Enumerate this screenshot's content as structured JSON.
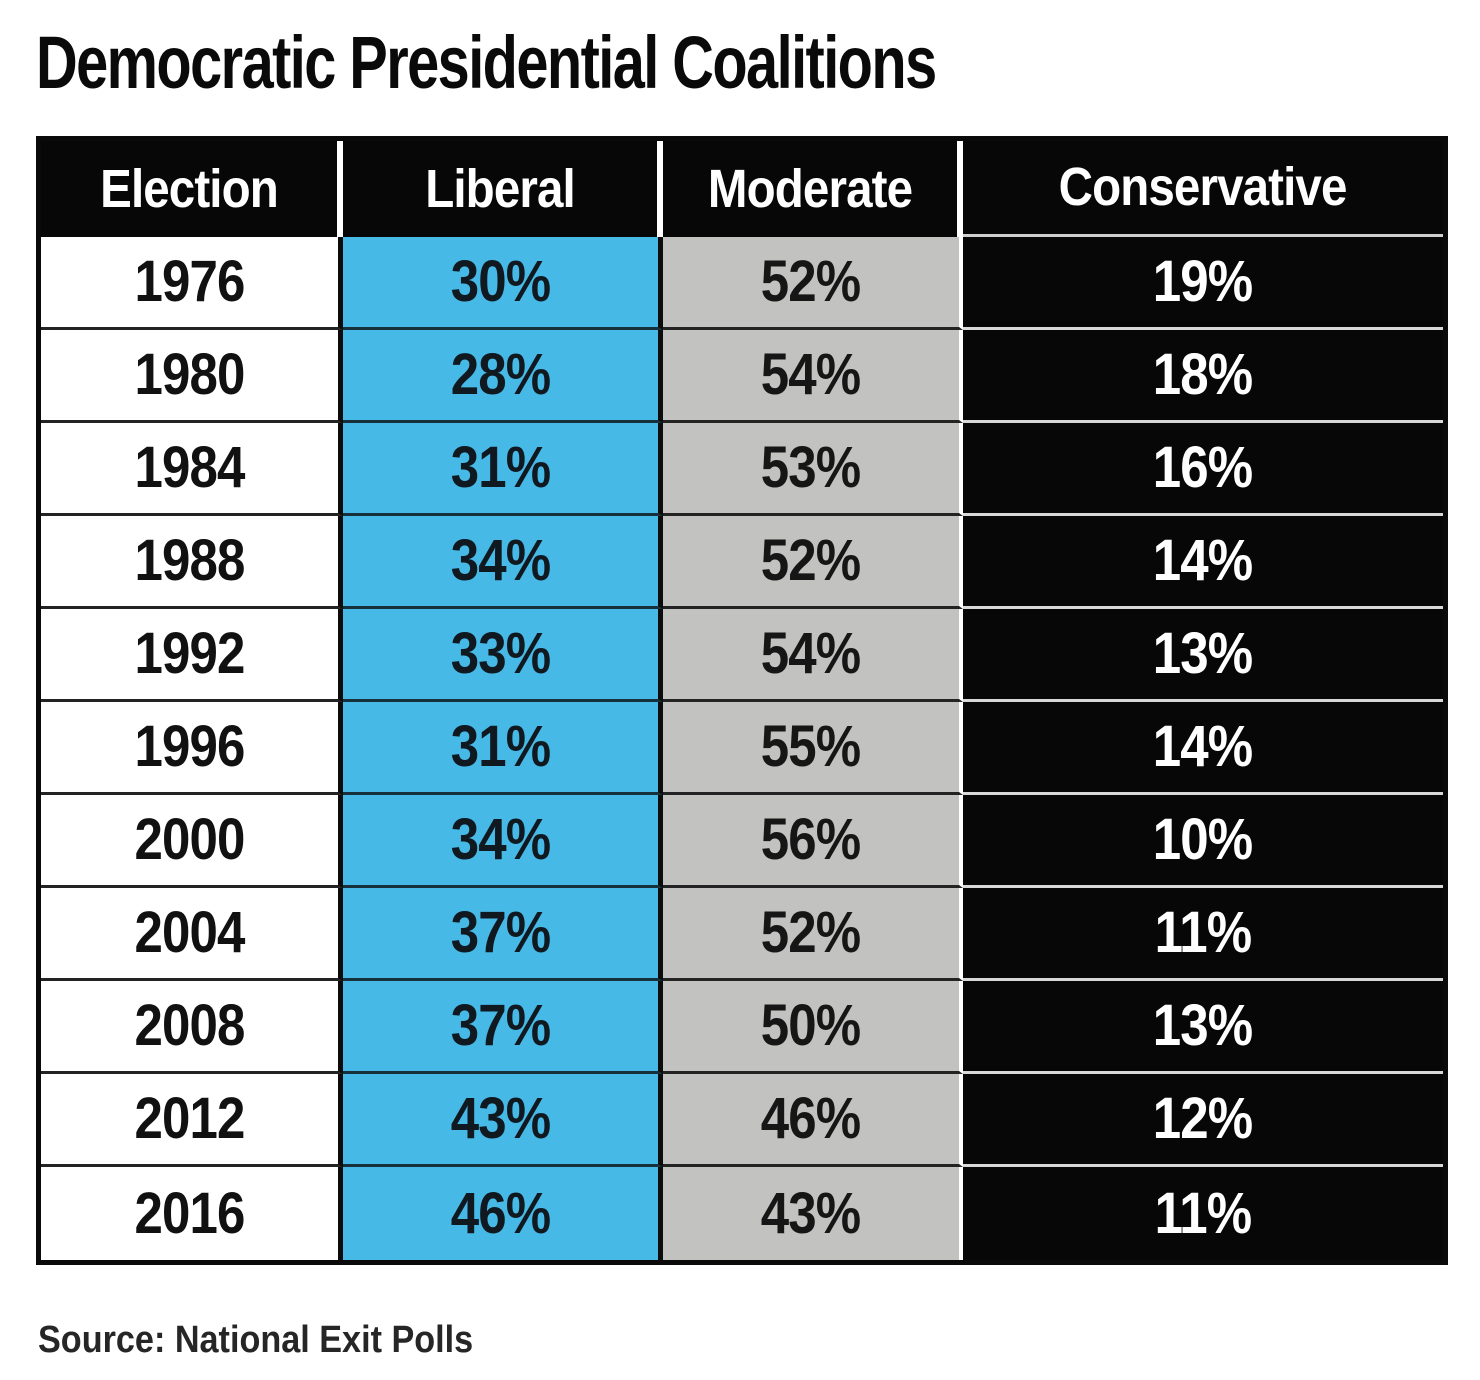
{
  "title": "Democratic Presidential Coalitions",
  "source_note": "Source: National Exit Polls",
  "colors": {
    "header_bg": "#070707",
    "header_text": "#ffffff",
    "liberal_cell": "#47b9e7",
    "moderate_cell": "#c2c2c0",
    "conservative_cell": "#070707"
  },
  "chart_data": {
    "type": "table",
    "title": "Democratic Presidential Coalitions",
    "columns": [
      "Election",
      "Liberal",
      "Moderate",
      "Conservative"
    ],
    "rows": [
      [
        "1976",
        "30%",
        "52%",
        "19%"
      ],
      [
        "1980",
        "28%",
        "54%",
        "18%"
      ],
      [
        "1984",
        "31%",
        "53%",
        "16%"
      ],
      [
        "1988",
        "34%",
        "52%",
        "14%"
      ],
      [
        "1992",
        "33%",
        "54%",
        "13%"
      ],
      [
        "1996",
        "31%",
        "55%",
        "14%"
      ],
      [
        "2000",
        "34%",
        "56%",
        "10%"
      ],
      [
        "2004",
        "37%",
        "52%",
        "11%"
      ],
      [
        "2008",
        "37%",
        "50%",
        "13%"
      ],
      [
        "2012",
        "43%",
        "46%",
        "12%"
      ],
      [
        "2016",
        "46%",
        "43%",
        "11%"
      ]
    ],
    "source": "Source: National Exit Polls"
  }
}
